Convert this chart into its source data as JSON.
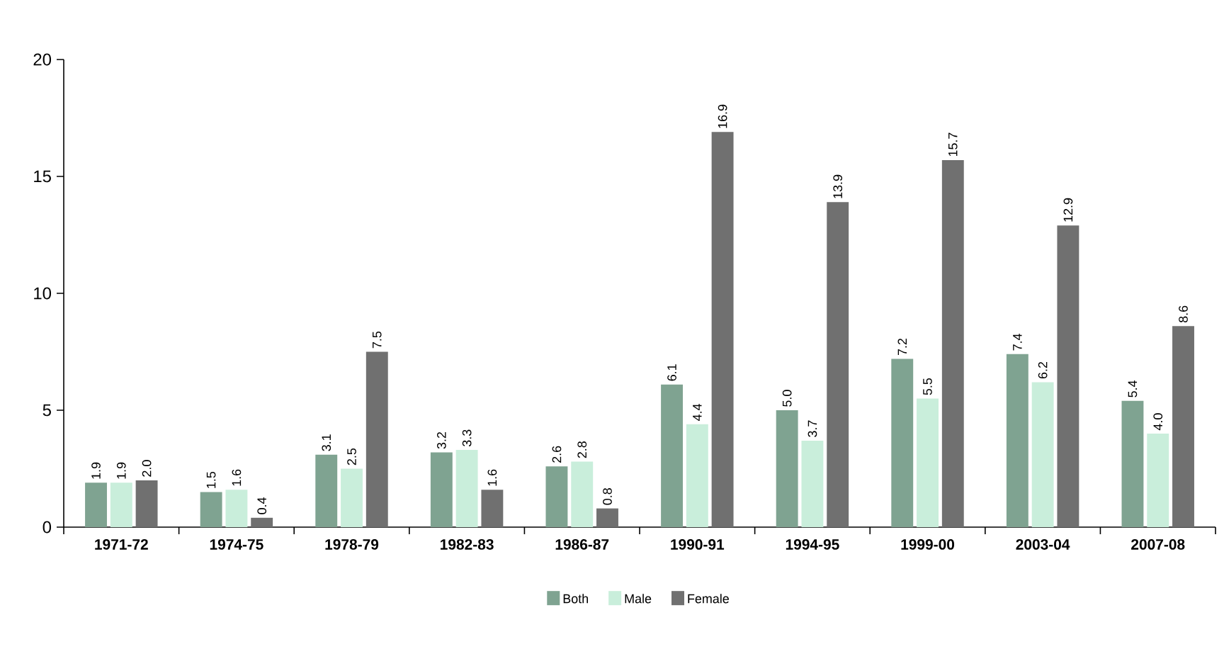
{
  "chart_data": {
    "type": "bar",
    "categories": [
      "1971-72",
      "1974-75",
      "1978-79",
      "1982-83",
      "1986-87",
      "1990-91",
      "1994-95",
      "1999-00",
      "2003-04",
      "2007-08"
    ],
    "series": [
      {
        "name": "Both",
        "color": "#7fa391",
        "values": [
          1.9,
          1.5,
          3.1,
          3.2,
          2.6,
          6.1,
          5.0,
          7.2,
          7.4,
          5.4
        ],
        "value_labels": [
          "1.9",
          "1.5",
          "3.1",
          "3.2",
          "2.6",
          "6.1",
          "5.0",
          "7.2",
          "7.4",
          "5.4"
        ]
      },
      {
        "name": "Male",
        "color": "#c9eedb",
        "values": [
          1.9,
          1.6,
          2.5,
          3.3,
          2.8,
          4.4,
          3.7,
          5.5,
          6.2,
          4.0
        ],
        "value_labels": [
          "1.9",
          "1.6",
          "2.5",
          "3.3",
          "2.8",
          "4.4",
          "3.7",
          "5.5",
          "6.2",
          "4.0"
        ]
      },
      {
        "name": "Female",
        "color": "#707070",
        "values": [
          2.0,
          0.4,
          7.5,
          1.6,
          0.8,
          16.9,
          13.9,
          15.7,
          12.9,
          8.6
        ],
        "value_labels": [
          "2.0",
          "0.4",
          "7.5",
          "1.6",
          "0.8",
          "16.9",
          "13.9",
          "15.7",
          "12.9",
          "8.6"
        ]
      }
    ],
    "ylim": [
      0,
      20
    ],
    "yticks": [
      0,
      5,
      10,
      15,
      20
    ],
    "grid": false,
    "legend": "bottom"
  }
}
